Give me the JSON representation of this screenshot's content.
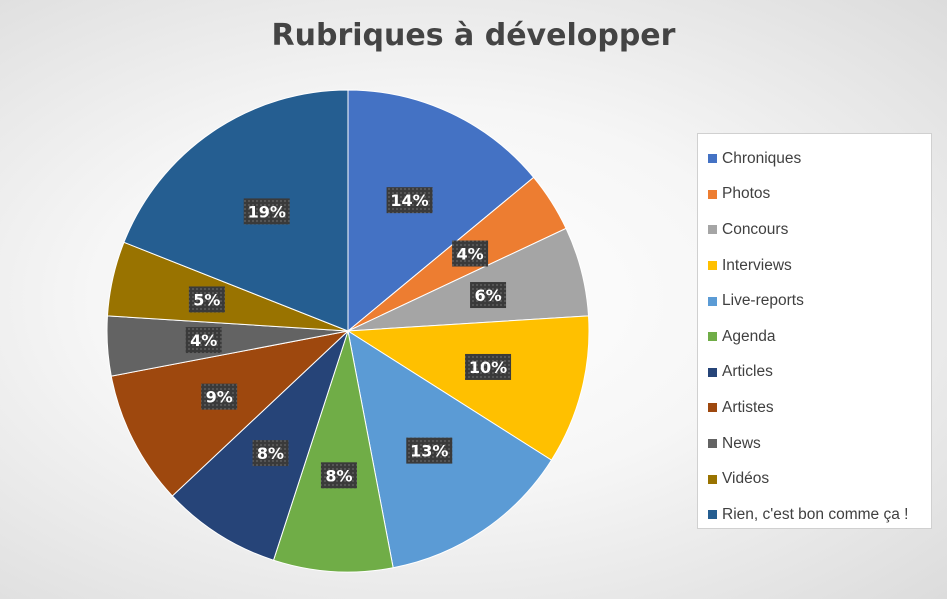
{
  "chart_data": {
    "type": "pie",
    "title": "Rubriques à développer",
    "legend_position": "right",
    "slices": [
      {
        "label": "Chroniques",
        "value": 14,
        "display": "14%",
        "color": "#4472C4"
      },
      {
        "label": "Photos",
        "value": 4,
        "display": "4%",
        "color": "#ED7D31"
      },
      {
        "label": "Concours",
        "value": 6,
        "display": "6%",
        "color": "#A5A5A5"
      },
      {
        "label": "Interviews",
        "value": 10,
        "display": "10%",
        "color": "#FFC000"
      },
      {
        "label": "Live-reports",
        "value": 13,
        "display": "13%",
        "color": "#5B9BD5"
      },
      {
        "label": "Agenda",
        "value": 8,
        "display": "8%",
        "color": "#70AD47"
      },
      {
        "label": "Articles",
        "value": 8,
        "display": "8%",
        "color": "#264478"
      },
      {
        "label": "Artistes",
        "value": 9,
        "display": "9%",
        "color": "#9E480E"
      },
      {
        "label": "News",
        "value": 4,
        "display": "4%",
        "color": "#636363"
      },
      {
        "label": "Vidéos",
        "value": 5,
        "display": "5%",
        "color": "#997300"
      },
      {
        "label": "Rien, c'est bon comme ça !",
        "value": 19,
        "display": "19%",
        "color": "#255E91"
      }
    ]
  }
}
